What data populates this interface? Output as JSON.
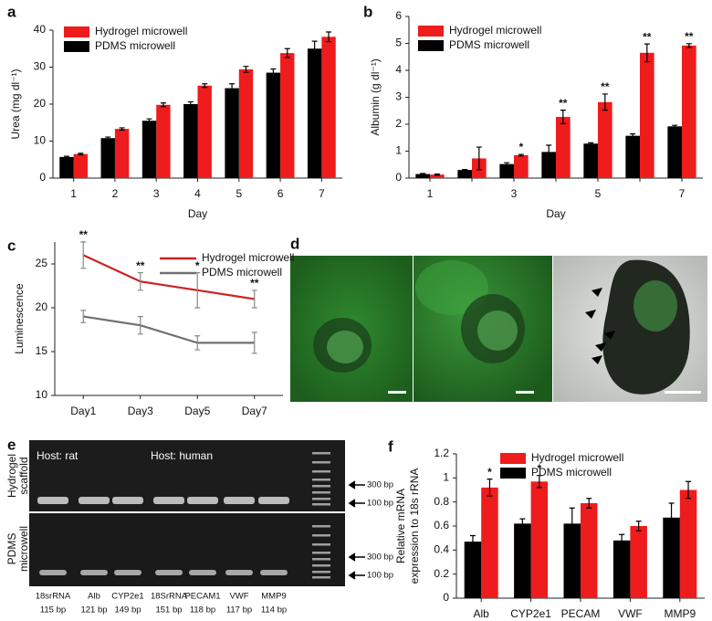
{
  "chart_data": [
    {
      "type": "bar",
      "panel_label": "a",
      "y_label": "Urea (mg dl⁻¹)",
      "x_label": "Day",
      "categories": [
        1,
        2,
        3,
        4,
        5,
        6,
        7
      ],
      "series": [
        {
          "name": "Hydrogel microwell",
          "color": "#ee1c1c",
          "values": [
            6.5,
            13.3,
            19.8,
            25,
            29.4,
            33.8,
            38.2
          ],
          "errors": [
            0.2,
            0.3,
            0.5,
            0.5,
            0.8,
            1.2,
            1.3
          ]
        },
        {
          "name": "PDMS microwell",
          "color": "#000000",
          "values": [
            5.7,
            10.8,
            15.5,
            20,
            24.3,
            28.5,
            35
          ],
          "errors": [
            0.2,
            0.3,
            0.5,
            0.6,
            1.2,
            1.0,
            2.0
          ]
        }
      ],
      "ylim": [
        0,
        40
      ],
      "yticks": [
        0,
        10,
        20,
        30,
        40
      ]
    },
    {
      "type": "bar",
      "panel_label": "b",
      "y_label": "Albumin (g dl⁻¹)",
      "x_label": "Day",
      "categories": [
        1,
        null,
        3,
        null,
        5,
        null,
        7
      ],
      "series": [
        {
          "name": "Hydrogel microwell",
          "color": "#ee1c1c",
          "values": [
            0.13,
            0.73,
            0.85,
            2.27,
            2.82,
            4.65,
            4.92
          ],
          "errors": [
            0.02,
            0.42,
            0.03,
            0.25,
            0.3,
            0.33,
            0.07
          ],
          "significance": [
            null,
            null,
            "*",
            "**",
            "**",
            "**",
            "**"
          ]
        },
        {
          "name": "PDMS microwell",
          "color": "#000000",
          "values": [
            0.15,
            0.3,
            0.52,
            0.97,
            1.28,
            1.57,
            1.92
          ],
          "errors": [
            0.02,
            0.02,
            0.05,
            0.25,
            0.03,
            0.07,
            0.04
          ]
        }
      ],
      "ylim": [
        0,
        6
      ],
      "yticks": [
        0,
        1,
        2,
        3,
        4,
        5,
        6
      ]
    },
    {
      "type": "line",
      "panel_label": "c",
      "y_label": "Luminescence",
      "categories": [
        "Day1",
        "Day3",
        "Day5",
        "Day7"
      ],
      "series": [
        {
          "name": "Hydrogel microwell",
          "color": "#cc2222",
          "values": [
            26,
            23,
            22,
            21
          ],
          "errors": [
            1.5,
            1,
            2,
            1
          ],
          "significance": [
            "**",
            "**",
            "*",
            "**"
          ]
        },
        {
          "name": "PDMS microwell",
          "color": "#707070",
          "values": [
            19,
            18,
            16,
            16
          ],
          "errors": [
            0.7,
            1,
            0.8,
            1.2
          ]
        }
      ],
      "ylim": [
        10,
        27.5
      ],
      "yticks": [
        10,
        15,
        20,
        25
      ]
    },
    {
      "type": "bar",
      "panel_label": "f",
      "y_label": [
        "Relative mRNA",
        "expression to 18s rRNA"
      ],
      "categories": [
        "Alb",
        "CYP2e1",
        "PECAM",
        "VWF",
        "MMP9"
      ],
      "series": [
        {
          "name": "Hydrogel microwell",
          "color": "#ee1c1c",
          "values": [
            0.92,
            0.97,
            0.79,
            0.6,
            0.9
          ],
          "errors": [
            0.07,
            0.05,
            0.04,
            0.04,
            0.07
          ],
          "significance": [
            "*",
            "*",
            null,
            null,
            null
          ]
        },
        {
          "name": "PDMS microwell",
          "color": "#000000",
          "values": [
            0.47,
            0.62,
            0.62,
            0.48,
            0.67
          ],
          "errors": [
            0.05,
            0.04,
            0.13,
            0.05,
            0.12
          ]
        }
      ],
      "ylim": [
        0,
        1.2
      ],
      "yticks": [
        0,
        0.2,
        0.4,
        0.6,
        0.8,
        1,
        1.2
      ]
    }
  ],
  "microscopy": {
    "panel_label": "d"
  },
  "gel": {
    "panel_label": "e",
    "hosts": [
      "Host: rat",
      "Host: human"
    ],
    "rows": [
      [
        "Hydrogel",
        "scaffold"
      ],
      [
        "PDMS",
        "microwell"
      ]
    ],
    "markers": [
      "300 bp",
      "100 bp"
    ],
    "lanes": [
      [
        "18srRNA",
        "115 bp"
      ],
      [
        "Alb",
        "121 bp"
      ],
      [
        "CYP2e1",
        "149 bp"
      ],
      [
        "18SrRNA",
        "151 bp"
      ],
      [
        "PECAM1",
        "118 bp"
      ],
      [
        "VWF",
        "117 bp"
      ],
      [
        "MMP9",
        "114 bp"
      ]
    ]
  }
}
